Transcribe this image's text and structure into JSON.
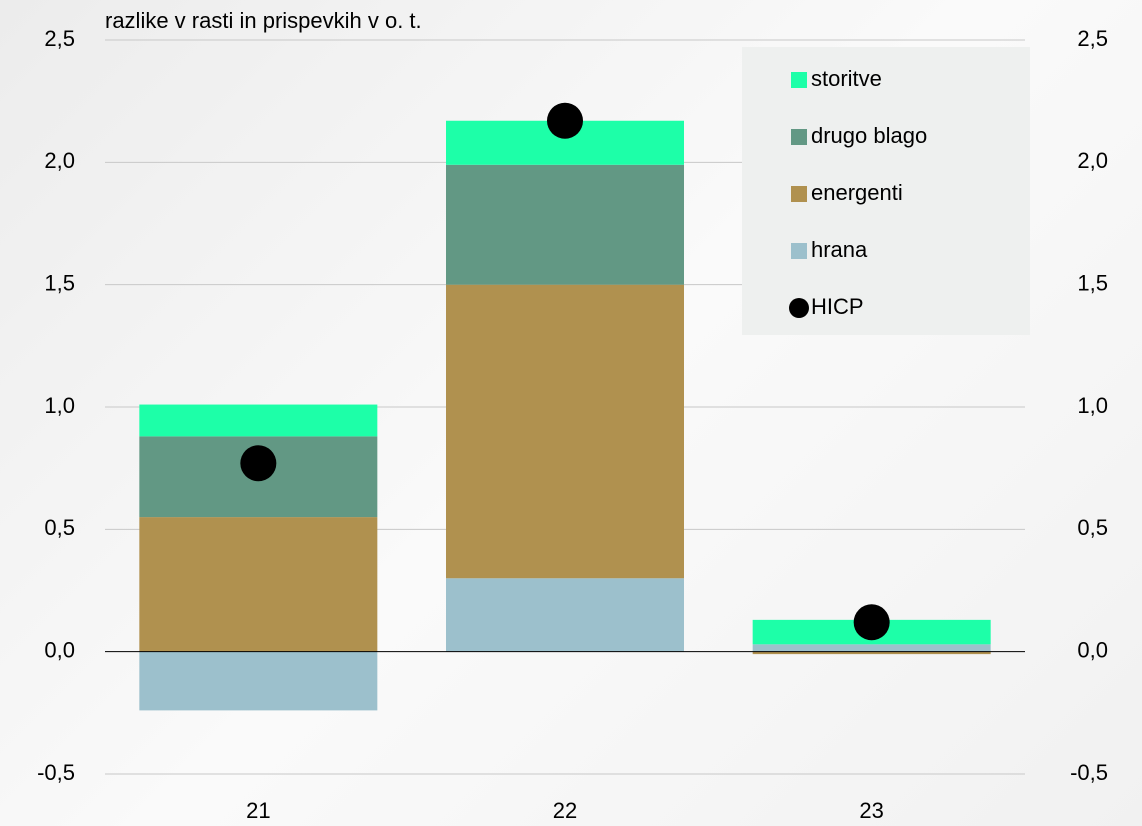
{
  "chart_data": {
    "type": "bar",
    "stacked": true,
    "title": "razlike v rasti in prispevkih v o. t.",
    "categories": [
      "21",
      "22",
      "23"
    ],
    "series": [
      {
        "name": "hrana",
        "color": "#9cc0cc",
        "values": [
          -0.24,
          0.3,
          0.03
        ]
      },
      {
        "name": "energenti",
        "color": "#b0914f",
        "values": [
          0.55,
          1.2,
          -0.01
        ]
      },
      {
        "name": "drugo blago",
        "color": "#629884",
        "values": [
          0.33,
          0.49,
          0.0
        ]
      },
      {
        "name": "storitve",
        "color": "#1dffa8",
        "values": [
          0.13,
          0.18,
          0.1
        ]
      },
      {
        "name": "HICP",
        "color": "#000000",
        "style": "dot",
        "values": [
          0.77,
          2.17,
          0.12
        ]
      }
    ],
    "legend_order": [
      3,
      2,
      1,
      0,
      4
    ],
    "legend": "upper right",
    "ylim": [
      -0.5,
      2.5
    ],
    "yticks": [
      {
        "value": -0.5,
        "label": "-0,5"
      },
      {
        "value": 0,
        "label": "0,0"
      },
      {
        "value": 0.5,
        "label": "0,5"
      },
      {
        "value": 1,
        "label": "1,0"
      },
      {
        "value": 1.5,
        "label": "1,5"
      },
      {
        "value": 2,
        "label": "2,0"
      },
      {
        "value": 2.5,
        "label": "2,5"
      }
    ],
    "y2lim": [
      -0.5,
      2.5
    ],
    "y2ticks": [
      {
        "value": -0.5,
        "label": "-0,5"
      },
      {
        "value": 0,
        "label": "0,0"
      },
      {
        "value": 0.5,
        "label": "0,5"
      },
      {
        "value": 1,
        "label": "1,0"
      },
      {
        "value": 1.5,
        "label": "1,5"
      },
      {
        "value": 2,
        "label": "2,0"
      },
      {
        "value": 2.5,
        "label": "2,5"
      }
    ],
    "grid": true
  }
}
